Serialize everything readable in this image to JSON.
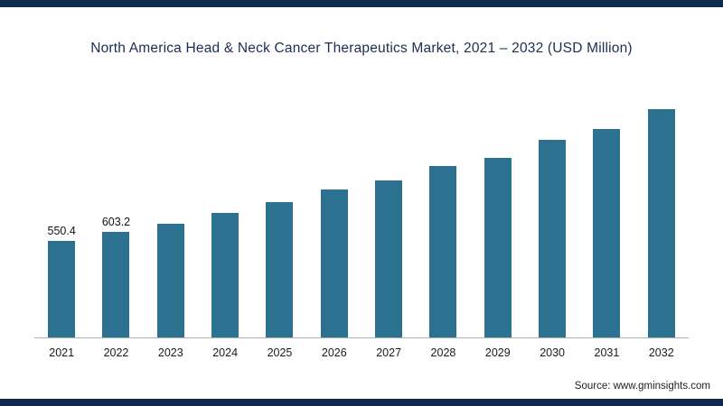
{
  "page": {
    "title": "North America Head & Neck Cancer Therapeutics Market, 2021 – 2032 (USD Million)",
    "source_label": "Source:",
    "source_value": "www.gminsights.com"
  },
  "colors": {
    "bar": "#2d7190",
    "border_strip": "#0e2a4e",
    "title_text": "#1c2e52",
    "axis_line": "#aeb2b8"
  },
  "chart_data": {
    "type": "bar",
    "title": "North America Head & Neck Cancer Therapeutics Market, 2021 – 2032 (USD Million)",
    "categories": [
      "2021",
      "2022",
      "2023",
      "2024",
      "2025",
      "2026",
      "2027",
      "2028",
      "2029",
      "2030",
      "2031",
      "2032"
    ],
    "values": [
      550.4,
      603.2,
      648,
      710,
      772,
      848,
      896,
      982,
      1029,
      1131,
      1194,
      1306
    ],
    "bar_labels": [
      "550.4",
      "603.2",
      "",
      "",
      "",
      "",
      "",
      "",
      "",
      "",
      "",
      ""
    ],
    "xlabel": "",
    "ylabel": "",
    "ylim": [
      0,
      1600
    ],
    "grid": false,
    "legend": false,
    "source": "Source: www.gminsights.com"
  }
}
